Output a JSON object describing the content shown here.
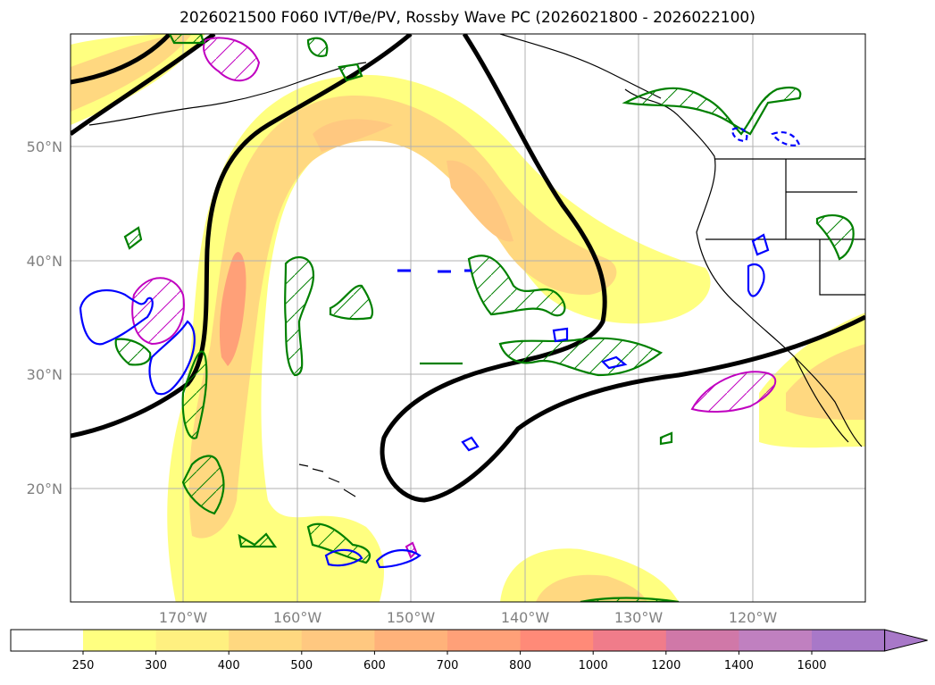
{
  "title": "2026021500 F060 IVT/θe/PV, Rossby Wave PC (2026021800 - 2026022100)",
  "lat_labels": [
    "50°N",
    "40°N",
    "30°N",
    "20°N"
  ],
  "lon_labels": [
    "170°W",
    "160°W",
    "150°W",
    "140°W",
    "130°W",
    "120°W"
  ],
  "colorbar": {
    "levels": [
      "250",
      "300",
      "400",
      "500",
      "600",
      "700",
      "800",
      "1000",
      "1200",
      "1400",
      "1600"
    ],
    "colors": [
      "#ffffff",
      "#ffff80",
      "#fff080",
      "#ffd880",
      "#ffc880",
      "#ffb27a",
      "#ffa078",
      "#ff8a78",
      "#f07c8a",
      "#d078a8",
      "#c080c0",
      "#a878c8"
    ]
  },
  "colors": {
    "ivt_yellow": "#ffff80",
    "ivt_orange": "#ffd080",
    "ivt_core": "#ffa078",
    "green_contour": "#008000",
    "blue_contour": "#0000ff",
    "magenta_contour": "#c000c0",
    "wave_line": "#000000"
  }
}
